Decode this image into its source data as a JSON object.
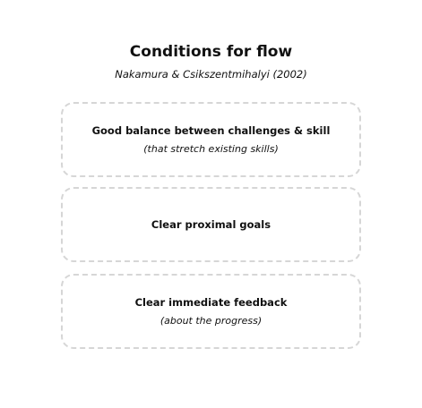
{
  "header": {
    "title": "Conditions for flow",
    "citation": "Nakamura & Csikszentmihalyi (2002)"
  },
  "conditions": [
    {
      "label": "Good balance between challenges & skill",
      "note": "(that stretch existing skills)"
    },
    {
      "label": "Clear proximal goals",
      "note": ""
    },
    {
      "label": "Clear immediate feedback",
      "note": "(about the progress)"
    }
  ]
}
